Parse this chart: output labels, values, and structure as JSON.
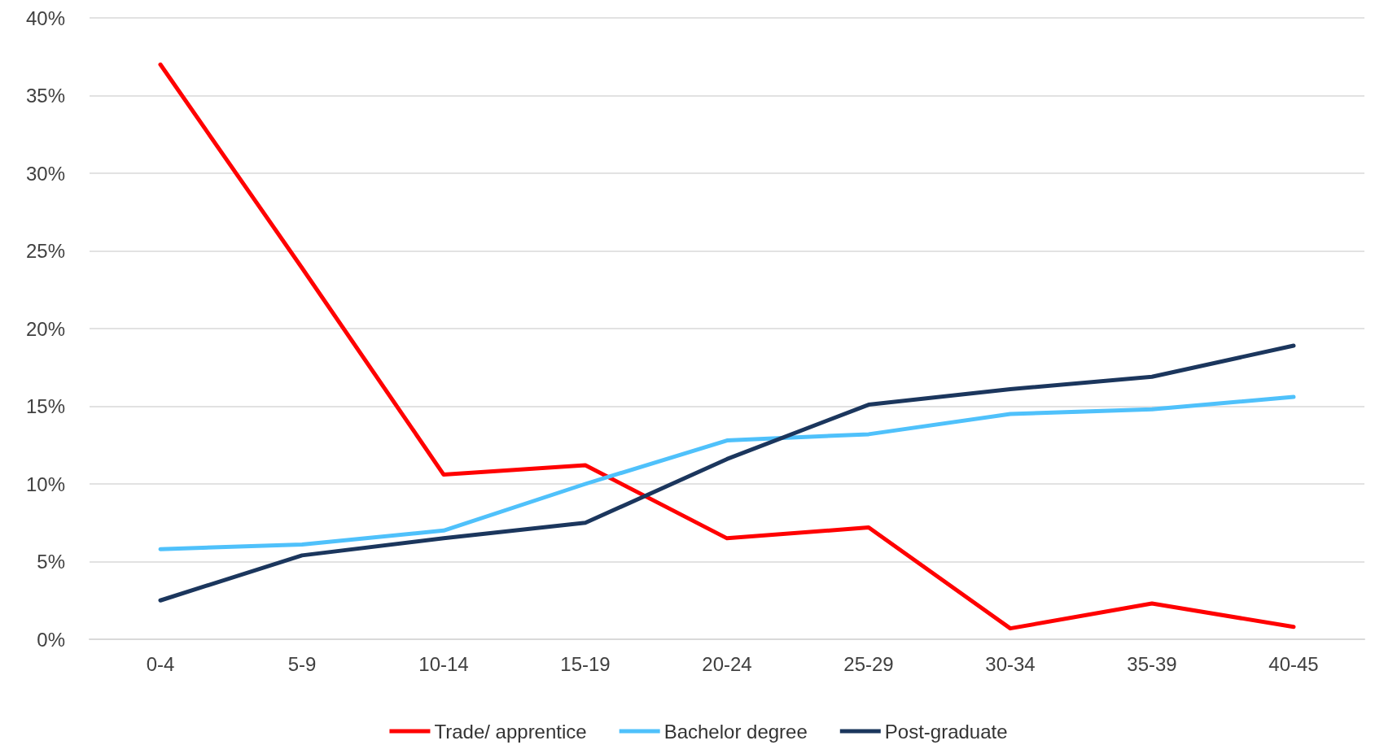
{
  "chart_data": {
    "type": "line",
    "categories": [
      "0-4",
      "5-9",
      "10-14",
      "15-19",
      "20-24",
      "25-29",
      "30-34",
      "35-39",
      "40-45"
    ],
    "series": [
      {
        "name": "Trade/ apprentice",
        "color": "#ff0000",
        "values": [
          37,
          23.9,
          10.6,
          11.2,
          6.5,
          7.2,
          0.7,
          2.3,
          0.8
        ]
      },
      {
        "name": "Bachelor degree",
        "color": "#4fc1fb",
        "values": [
          5.8,
          6.1,
          7.0,
          10.0,
          12.8,
          13.2,
          14.5,
          14.8,
          15.6
        ]
      },
      {
        "name": "Post-graduate",
        "color": "#1b365d",
        "values": [
          2.5,
          5.4,
          6.5,
          7.5,
          11.6,
          15.1,
          16.1,
          16.9,
          18.9
        ]
      }
    ],
    "ylim": [
      0,
      40
    ],
    "yticks": [
      {
        "value": 0,
        "label": "0%"
      },
      {
        "value": 5,
        "label": "5%"
      },
      {
        "value": 10,
        "label": "10%"
      },
      {
        "value": 15,
        "label": "15%"
      },
      {
        "value": 20,
        "label": "20%"
      },
      {
        "value": 25,
        "label": "25%"
      },
      {
        "value": 30,
        "label": "30%"
      },
      {
        "value": 35,
        "label": "35%"
      },
      {
        "value": 40,
        "label": "40%"
      }
    ],
    "grid": "y",
    "legend": "bottom",
    "marker": "none",
    "line_style": "solid"
  }
}
